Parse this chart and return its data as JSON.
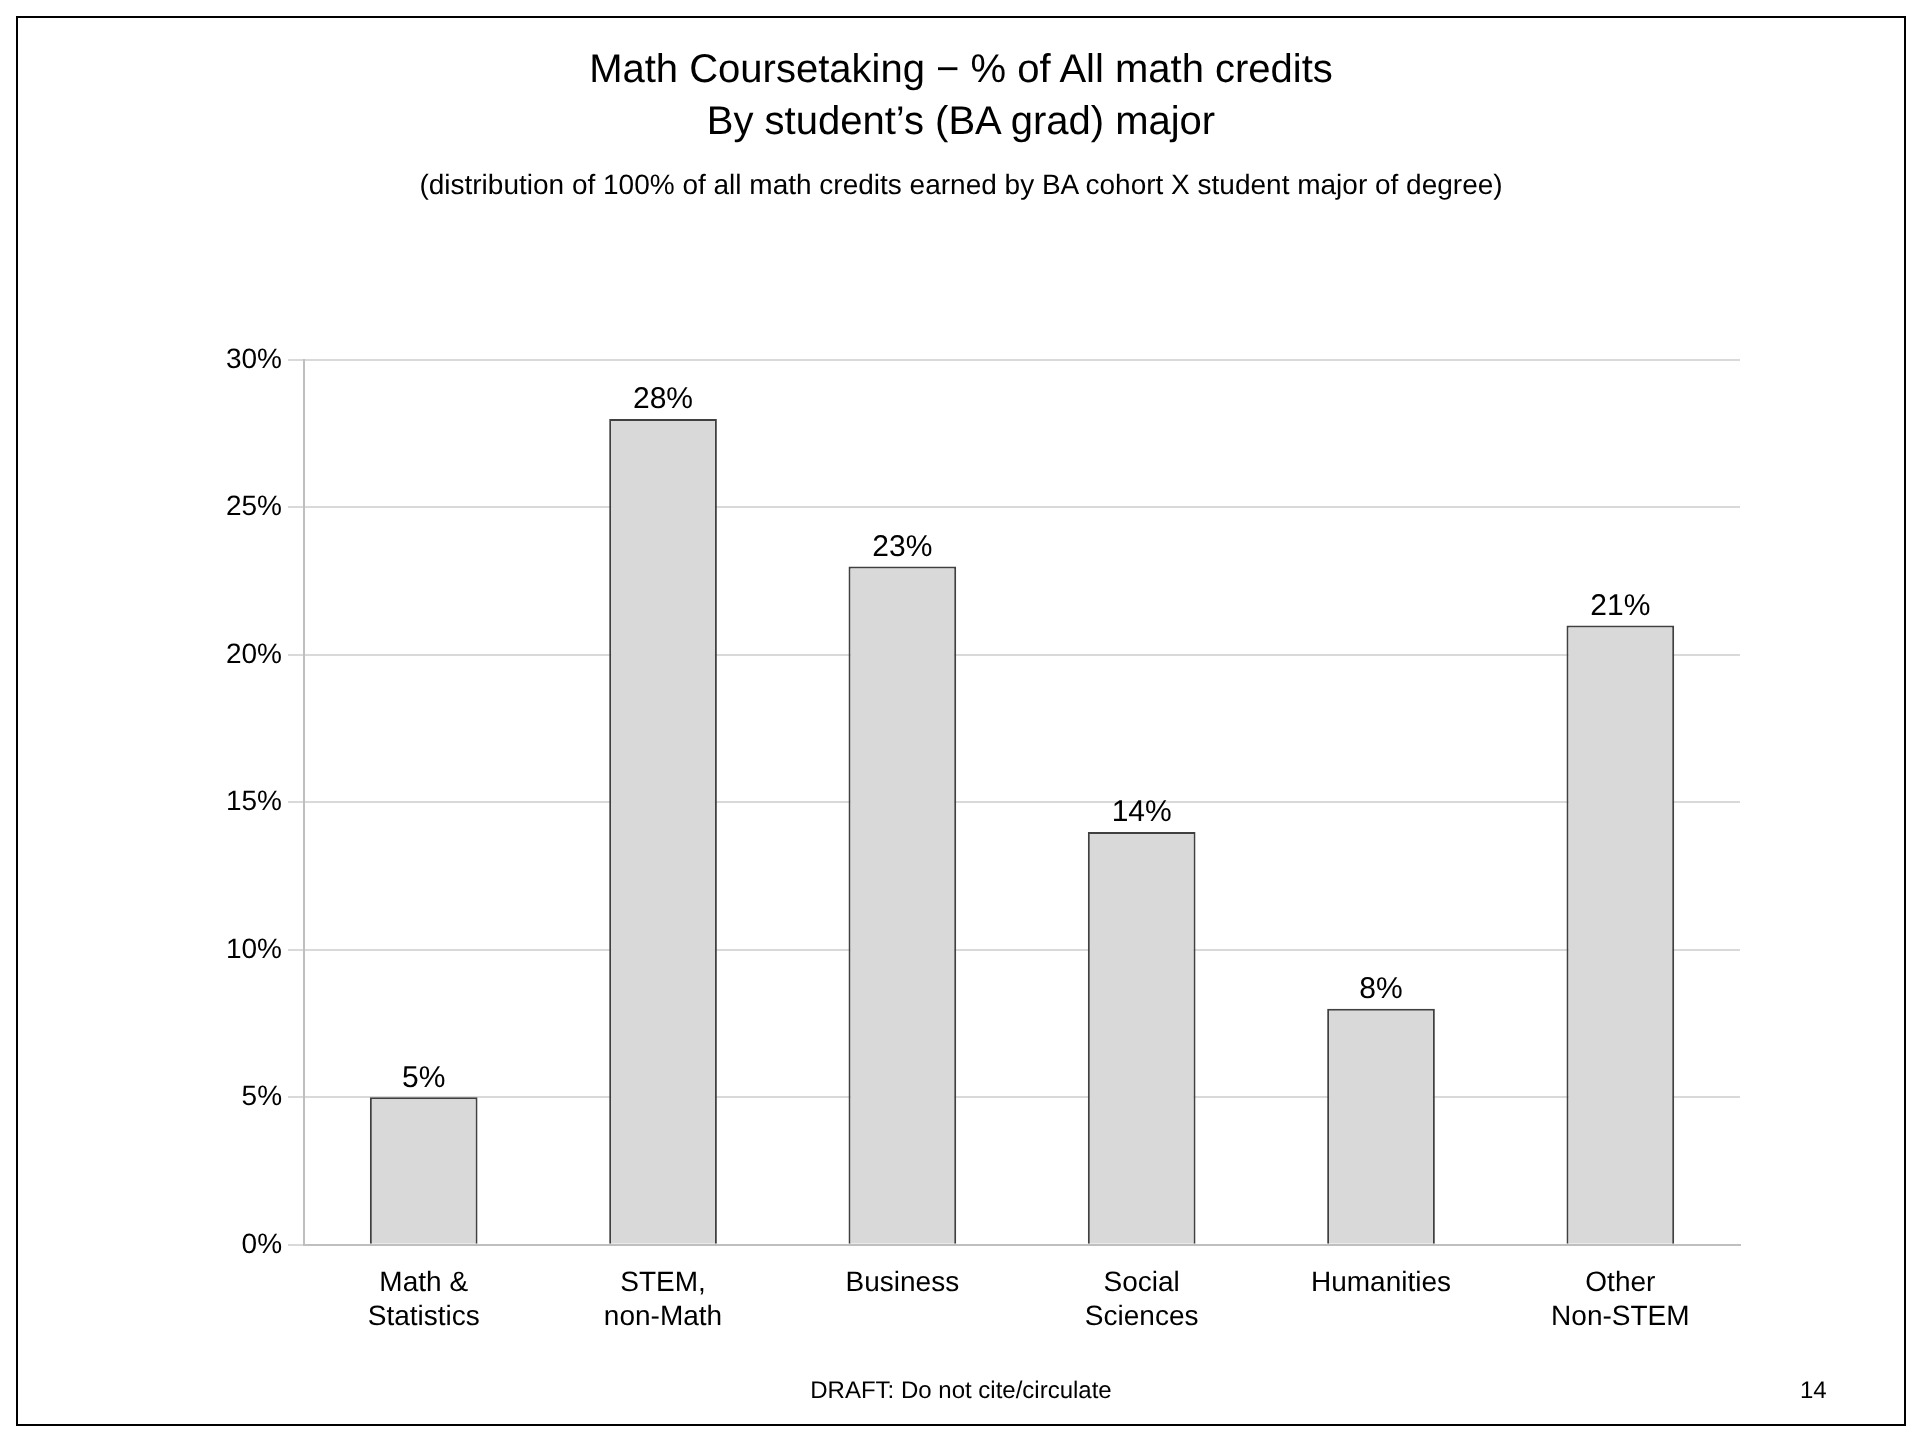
{
  "chart_data": {
    "type": "bar",
    "title": "Math Coursetaking − % of All math credits",
    "subtitle": "By student’s (BA grad) major",
    "annotations": [
      "(distribution of 100% of all math credits earned by BA cohort X student major of degree)",
      "DRAFT: Do not cite/circulate",
      "14"
    ],
    "categories": [
      "Math & Statistics",
      "STEM, non-Math",
      "Business",
      "Social Sciences",
      "Humanities",
      "Other Non-STEM"
    ],
    "values": [
      5,
      28,
      23,
      14,
      8,
      21
    ],
    "color": "#d9d9d9",
    "ylim": [
      0,
      30
    ],
    "yticks": [
      {
        "value": 0,
        "label": "0%"
      },
      {
        "value": 5,
        "label": "5%"
      },
      {
        "value": 10,
        "label": "10%"
      },
      {
        "value": 15,
        "label": "15%"
      },
      {
        "value": 20,
        "label": "20%"
      },
      {
        "value": 25,
        "label": "25%"
      },
      {
        "value": 30,
        "label": "30%"
      }
    ],
    "grid": "y",
    "value_labels": [
      "5%",
      "28%",
      "23%",
      "14%",
      "8%",
      "21%"
    ]
  }
}
